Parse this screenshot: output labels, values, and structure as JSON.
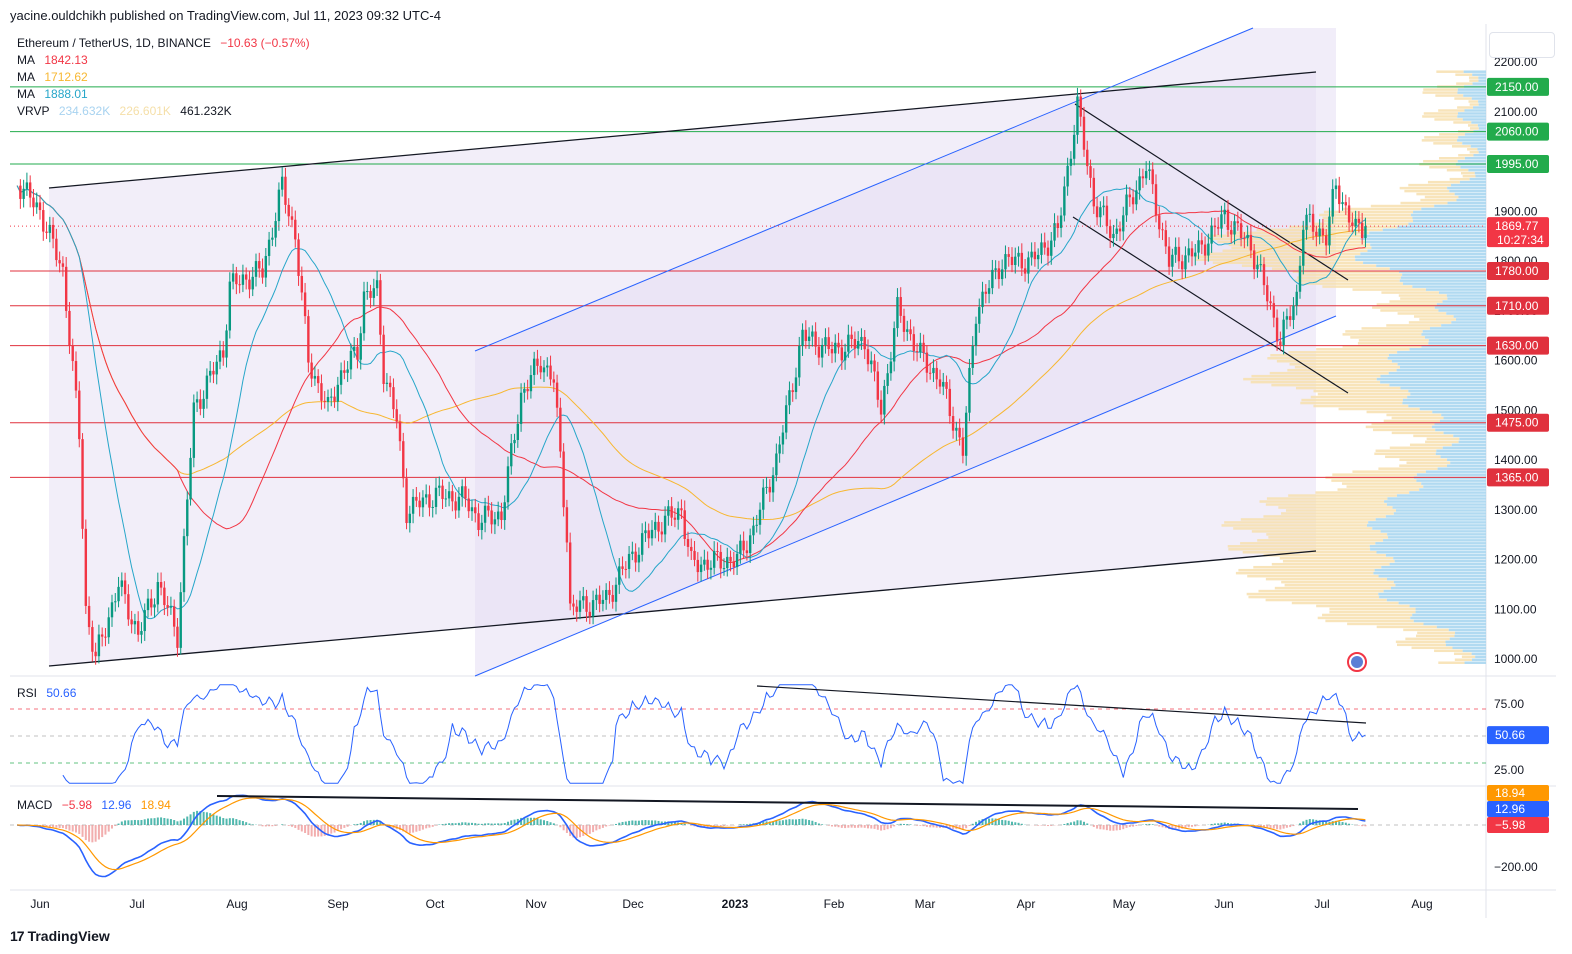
{
  "header": {
    "publisher": "yacine.ouldchikh published on TradingView.com, Jul 11, 2023 09:32 UTC-4"
  },
  "legend": {
    "symbol": "Ethereum / TetherUS, 1D, BINANCE",
    "change": "−10.63 (−0.57%)",
    "ma1": {
      "label": "MA",
      "value": "1842.13",
      "color": "#f23645"
    },
    "ma2": {
      "label": "MA",
      "value": "1712.62",
      "color": "#f7b731"
    },
    "ma3": {
      "label": "MA",
      "value": "1888.01",
      "color": "#26a6c9"
    },
    "vrvp": {
      "label": "VRVP",
      "v1": "234.632K",
      "v2": "226.601K",
      "v3": "461.232K"
    },
    "rsi": {
      "label": "RSI",
      "value": "50.66"
    },
    "macd": {
      "label": "MACD",
      "v1": "−5.98",
      "v2": "12.96",
      "v3": "18.94"
    }
  },
  "brand": "TradingView",
  "chart_data": [
    {
      "type": "candlestick",
      "title": "Ethereum / TetherUS, 1D, BINANCE",
      "price_axis_ticks": [
        2200,
        2100,
        2000,
        1900,
        1800,
        1700,
        1600,
        1500,
        1400,
        1300,
        1200,
        1100,
        1000
      ],
      "time_axis_labels": [
        "Jun",
        "Jul",
        "Aug",
        "Sep",
        "Oct",
        "Nov",
        "Dec",
        "2023",
        "Feb",
        "Mar",
        "Apr",
        "May",
        "Jun",
        "Jul",
        "Aug"
      ],
      "price_anchors": [
        [
          "2022-05-25",
          1960
        ],
        [
          "2022-06-01",
          1900
        ],
        [
          "2022-06-08",
          1780
        ],
        [
          "2022-06-13",
          1450
        ],
        [
          "2022-06-15",
          1100
        ],
        [
          "2022-06-18",
          1000
        ],
        [
          "2022-06-25",
          1150
        ],
        [
          "2022-07-01",
          1050
        ],
        [
          "2022-07-07",
          1150
        ],
        [
          "2022-07-13",
          1050
        ],
        [
          "2022-07-18",
          1500
        ],
        [
          "2022-07-27",
          1620
        ],
        [
          "2022-07-29",
          1750
        ],
        [
          "2022-08-08",
          1780
        ],
        [
          "2022-08-14",
          1950
        ],
        [
          "2022-08-18",
          1850
        ],
        [
          "2022-08-22",
          1600
        ],
        [
          "2022-08-28",
          1500
        ],
        [
          "2022-08-31",
          1560
        ],
        [
          "2022-09-06",
          1620
        ],
        [
          "2022-09-08",
          1730
        ],
        [
          "2022-09-12",
          1740
        ],
        [
          "2022-09-14",
          1580
        ],
        [
          "2022-09-18",
          1480
        ],
        [
          "2022-09-21",
          1300
        ],
        [
          "2022-09-30",
          1330
        ],
        [
          "2022-10-09",
          1320
        ],
        [
          "2022-10-13",
          1280
        ],
        [
          "2022-10-20",
          1290
        ],
        [
          "2022-10-26",
          1530
        ],
        [
          "2022-11-01",
          1600
        ],
        [
          "2022-11-05",
          1560
        ],
        [
          "2022-11-09",
          1250
        ],
        [
          "2022-11-10",
          1100
        ],
        [
          "2022-11-21",
          1120
        ],
        [
          "2022-11-28",
          1200
        ],
        [
          "2022-12-05",
          1260
        ],
        [
          "2022-12-14",
          1300
        ],
        [
          "2022-12-17",
          1190
        ],
        [
          "2022-12-31",
          1200
        ],
        [
          "2023-01-05",
          1260
        ],
        [
          "2023-01-12",
          1400
        ],
        [
          "2023-01-20",
          1650
        ],
        [
          "2023-01-29",
          1620
        ],
        [
          "2023-02-08",
          1640
        ],
        [
          "2023-02-13",
          1500
        ],
        [
          "2023-02-18",
          1700
        ],
        [
          "2023-02-25",
          1610
        ],
        [
          "2023-03-03",
          1560
        ],
        [
          "2023-03-10",
          1420
        ],
        [
          "2023-03-14",
          1700
        ],
        [
          "2023-03-22",
          1800
        ],
        [
          "2023-03-31",
          1800
        ],
        [
          "2023-04-08",
          1860
        ],
        [
          "2023-04-14",
          2110
        ],
        [
          "2023-04-19",
          1920
        ],
        [
          "2023-04-25",
          1850
        ],
        [
          "2023-05-05",
          1990
        ],
        [
          "2023-05-12",
          1800
        ],
        [
          "2023-05-21",
          1820
        ],
        [
          "2023-05-29",
          1890
        ],
        [
          "2023-06-06",
          1830
        ],
        [
          "2023-06-10",
          1750
        ],
        [
          "2023-06-15",
          1640
        ],
        [
          "2023-06-20",
          1730
        ],
        [
          "2023-06-22",
          1880
        ],
        [
          "2023-06-29",
          1850
        ],
        [
          "2023-07-02",
          1950
        ],
        [
          "2023-07-06",
          1890
        ],
        [
          "2023-07-08",
          1860
        ],
        [
          "2023-07-11",
          1870
        ]
      ],
      "moving_averages": [
        {
          "name": "MA",
          "value": 1842.13,
          "color": "#f23645"
        },
        {
          "name": "MA",
          "value": 1712.62,
          "color": "#f7b731"
        },
        {
          "name": "MA",
          "value": 1888.01,
          "color": "#26a6c9"
        }
      ],
      "horizontal_levels": [
        {
          "price": 2150,
          "label": "2150.00",
          "color": "#22ab4c"
        },
        {
          "price": 2060,
          "label": "2060.00",
          "color": "#22ab4c"
        },
        {
          "price": 1995,
          "label": "1995.00",
          "color": "#22ab4c"
        },
        {
          "price": 1780,
          "label": "1780.00",
          "color": "#e0313d"
        },
        {
          "price": 1710,
          "label": "1710.00",
          "color": "#e0313d"
        },
        {
          "price": 1630,
          "label": "1630.00",
          "color": "#e0313d"
        },
        {
          "price": 1475,
          "label": "1475.00",
          "color": "#e0313d"
        },
        {
          "price": 1365,
          "label": "1365.00",
          "color": "#e0313d"
        }
      ],
      "current_price": {
        "label": "1869.77",
        "countdown": "10:27:34",
        "color": "#f23645"
      }
    },
    {
      "type": "line",
      "title": "RSI",
      "value": 50.66,
      "value_label": "50.66",
      "axis_ticks": [
        "75.00",
        "25.00"
      ],
      "bands": [
        70,
        50,
        30
      ]
    },
    {
      "type": "histogram+line",
      "title": "MACD",
      "labels": [
        {
          "text": "18.94",
          "color": "#ff9800"
        },
        {
          "text": "12.96",
          "color": "#2962ff"
        },
        {
          "text": "−5.98",
          "color": "#f23645"
        }
      ],
      "axis_ticks": [
        "−200.00"
      ]
    }
  ],
  "colors": {
    "up": "#089981",
    "down": "#f23645",
    "blue": "#2962ff",
    "orange": "#ff9800",
    "channel": "#d1c8e8"
  }
}
